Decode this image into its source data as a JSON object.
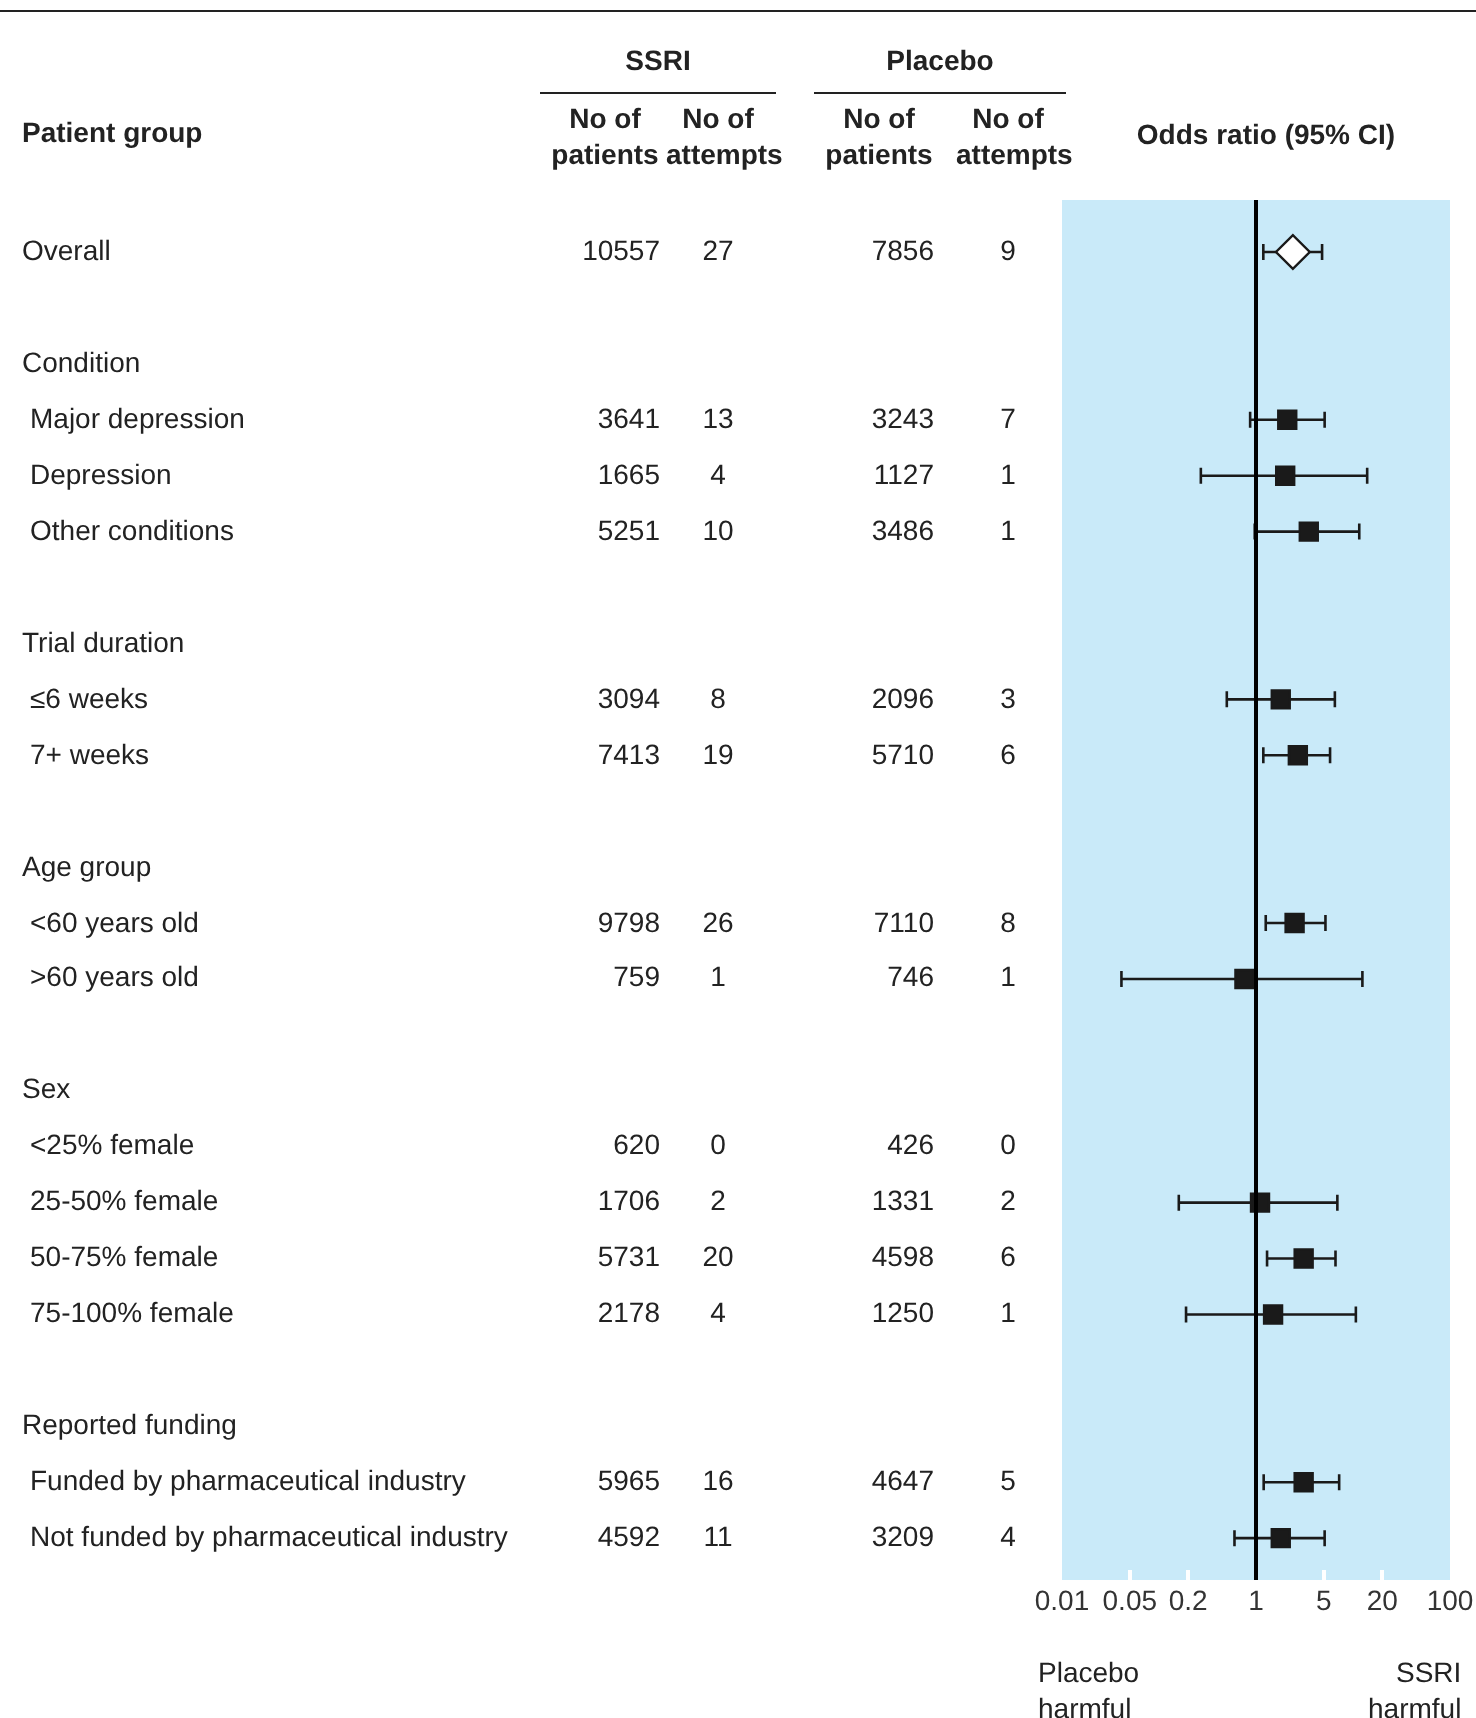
{
  "chart_data": [
    {
      "type": "other",
      "data_labels": true,
      "ylabel": "Patient group",
      "annotations": [
        "SSRI",
        "Placebo"
      ],
      "categories": [
        "Overall",
        null,
        "Condition",
        "Major depression",
        "Depression",
        "Other conditions",
        null,
        "Trial duration",
        "≤6 weeks",
        "7+ weeks",
        null,
        "Age group",
        "<60 years old",
        ">60 years old",
        null,
        "Sex",
        "<25% female",
        "25-50% female",
        "50-75% female",
        "75-100% female",
        null,
        "Reported funding",
        "Funded by pharmaceutical industry",
        "Not funded by pharmaceutical industry"
      ],
      "series": [
        {
          "name": "No of patients",
          "values": [
            10557,
            null,
            null,
            3641,
            1665,
            5251,
            null,
            null,
            3094,
            7413,
            null,
            null,
            9798,
            759,
            null,
            null,
            620,
            1706,
            5731,
            2178,
            null,
            null,
            5965,
            4592
          ]
        },
        {
          "name": "No of attempts",
          "values": [
            27,
            null,
            null,
            13,
            4,
            10,
            null,
            null,
            8,
            19,
            null,
            null,
            26,
            1,
            null,
            null,
            0,
            2,
            20,
            4,
            null,
            null,
            16,
            11
          ]
        },
        {
          "name": "No of patients",
          "values": [
            7856,
            null,
            null,
            3243,
            1127,
            3486,
            null,
            null,
            2096,
            5710,
            null,
            null,
            7110,
            746,
            null,
            null,
            426,
            1331,
            4598,
            1250,
            null,
            null,
            4647,
            3209
          ]
        },
        {
          "name": "No of attempts",
          "values": [
            9,
            null,
            null,
            7,
            1,
            1,
            null,
            null,
            3,
            6,
            null,
            null,
            8,
            1,
            null,
            null,
            0,
            2,
            6,
            1,
            null,
            null,
            5,
            4
          ]
        }
      ]
    },
    {
      "type": "scatter",
      "orientation": "horizontal",
      "title": "Odds ratio (95% CI)",
      "categories": [
        null,
        null,
        null,
        null,
        null,
        null,
        null,
        null,
        null,
        null,
        null,
        null,
        null,
        null,
        null,
        null,
        null,
        null,
        null,
        null,
        null,
        null,
        null,
        null
      ],
      "series": [
        {
          "color": "#ffffff",
          "marker": "diamond",
          "values": [
            2.4,
            null,
            null,
            null,
            null,
            null,
            null,
            null,
            null,
            null,
            null,
            null,
            null,
            null,
            null,
            null,
            null,
            null,
            null,
            null,
            null,
            null,
            null,
            null
          ],
          "errors": [
            [
              1.19,
              4.8
            ],
            null,
            null,
            null,
            null,
            null,
            null,
            null,
            null,
            null,
            null,
            null,
            null,
            null,
            null,
            null,
            null,
            null,
            null,
            null,
            null,
            null,
            null,
            null
          ]
        },
        {
          "color": "#1a1a1a",
          "marker": "square",
          "values": [
            null,
            null,
            null,
            2.1,
            2.0,
            3.5,
            null,
            null,
            1.8,
            2.7,
            null,
            null,
            2.5,
            0.76,
            null,
            null,
            null,
            1.1,
            3.1,
            1.5,
            null,
            null,
            3.1,
            1.8
          ],
          "errors": [
            null,
            null,
            null,
            [
              0.87,
              5.1
            ],
            [
              0.27,
              14
            ],
            [
              0.97,
              11.6
            ],
            null,
            null,
            [
              0.5,
              6.5
            ],
            [
              1.19,
              5.8
            ],
            null,
            null,
            [
              1.26,
              5.2
            ],
            [
              0.041,
              12.5
            ],
            null,
            null,
            null,
            [
              0.16,
              6.9
            ],
            [
              1.3,
              6.6
            ],
            [
              0.19,
              10.7
            ],
            null,
            null,
            [
              1.2,
              7.2
            ],
            [
              0.6,
              5.1
            ]
          ]
        }
      ],
      "log": "x",
      "xlim": [
        0.01,
        100
      ],
      "xticks": [
        0.01,
        0.05,
        0.2,
        1,
        5,
        20,
        100
      ],
      "tick_labels": "x",
      "ref_lines": [
        {
          "axis": "x",
          "value": 1
        }
      ],
      "bands": [
        {
          "axis": "x",
          "from": 0.01,
          "to": 100,
          "color": "#c9eaf9"
        }
      ],
      "annotations": [
        "Placebo harmful",
        "SSRI harmful"
      ]
    }
  ]
}
